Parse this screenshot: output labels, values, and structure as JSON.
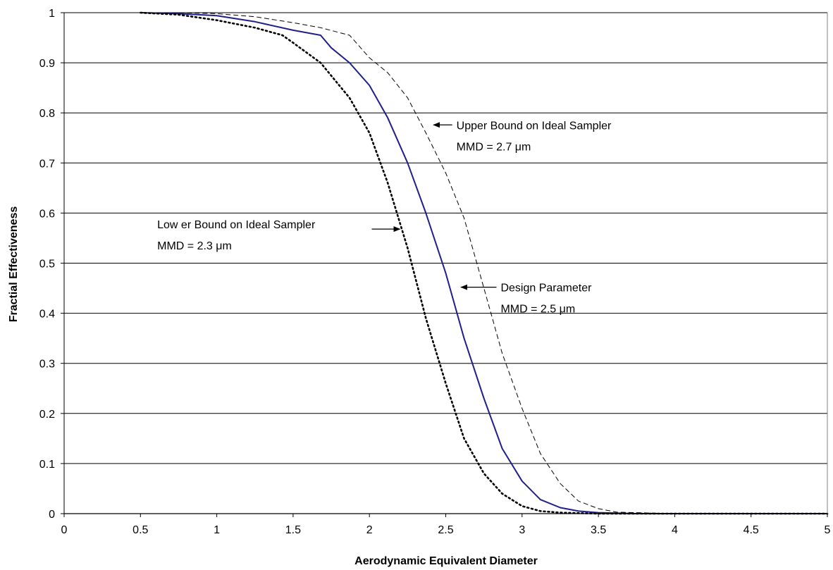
{
  "chart_data": {
    "type": "line",
    "title": "",
    "xlabel": "Aerodynamic Equivalent Diameter",
    "ylabel": "Fractial Effectiveness",
    "xlim": [
      0,
      5
    ],
    "ylim": [
      0,
      1
    ],
    "x_ticks": [
      "0",
      "0.5",
      "1",
      "1.5",
      "2",
      "2.5",
      "3",
      "3.5",
      "4",
      "4.5",
      "5"
    ],
    "y_ticks": [
      "0",
      "0.1",
      "0.2",
      "0.3",
      "0.4",
      "0.5",
      "0.6",
      "0.7",
      "0.8",
      "0.9",
      "1"
    ],
    "grid": "horizontal",
    "legend": "none",
    "series": [
      {
        "style": "solid",
        "color": "#1f1f8c",
        "x": [
          0.5,
          0.75,
          1.0,
          1.25,
          1.5,
          1.68,
          1.75,
          1.87,
          2.0,
          2.12,
          2.25,
          2.37,
          2.5,
          2.62,
          2.75,
          2.87,
          3.0,
          3.12,
          3.25,
          3.37,
          3.5,
          3.75,
          4.0,
          4.5,
          5.0
        ],
        "y": [
          1.0,
          0.998,
          0.994,
          0.982,
          0.965,
          0.955,
          0.93,
          0.9,
          0.855,
          0.79,
          0.7,
          0.6,
          0.48,
          0.35,
          0.23,
          0.13,
          0.065,
          0.028,
          0.012,
          0.005,
          0.002,
          0.0,
          0.0,
          0.0,
          0.0
        ]
      },
      {
        "style": "dotted",
        "color": "#000000",
        "x": [
          0.5,
          0.75,
          1.0,
          1.25,
          1.43,
          1.5,
          1.68,
          1.87,
          2.0,
          2.12,
          2.25,
          2.37,
          2.5,
          2.62,
          2.75,
          2.87,
          3.0,
          3.12,
          3.25,
          3.5,
          4.0,
          4.5,
          5.0
        ],
        "y": [
          1.0,
          0.996,
          0.985,
          0.97,
          0.955,
          0.94,
          0.9,
          0.83,
          0.76,
          0.66,
          0.53,
          0.39,
          0.26,
          0.15,
          0.08,
          0.04,
          0.015,
          0.005,
          0.002,
          0.0,
          0.0,
          0.0,
          0.0
        ]
      },
      {
        "style": "dashed",
        "color": "#000000",
        "x": [
          0.5,
          0.75,
          1.0,
          1.25,
          1.5,
          1.68,
          1.87,
          2.0,
          2.12,
          2.25,
          2.37,
          2.5,
          2.62,
          2.75,
          2.87,
          3.0,
          3.12,
          3.25,
          3.37,
          3.5,
          3.62,
          4.0,
          4.5,
          5.0
        ],
        "y": [
          1.0,
          1.0,
          0.998,
          0.992,
          0.98,
          0.97,
          0.955,
          0.91,
          0.88,
          0.83,
          0.76,
          0.68,
          0.59,
          0.45,
          0.32,
          0.21,
          0.12,
          0.06,
          0.025,
          0.01,
          0.003,
          0.0,
          0.0,
          0.0
        ]
      }
    ],
    "annotations": [
      {
        "lines": [
          "Upper Bound on Ideal Sampler",
          "MMD = 2.7 μm"
        ],
        "x": 2.57,
        "y": 0.776,
        "arrow_to": [
          2.42,
          0.776
        ]
      },
      {
        "lines": [
          "Low er Bound on Ideal Sampler",
          "MMD = 2.3 μm"
        ],
        "x": 0.61,
        "y": 0.578,
        "arrow_to": [
          2.2,
          0.568
        ]
      },
      {
        "lines": [
          "Design Parameter",
          "MMD = 2.5 μm"
        ],
        "x": 2.86,
        "y": 0.452,
        "arrow_to": [
          2.6,
          0.452
        ]
      }
    ]
  }
}
